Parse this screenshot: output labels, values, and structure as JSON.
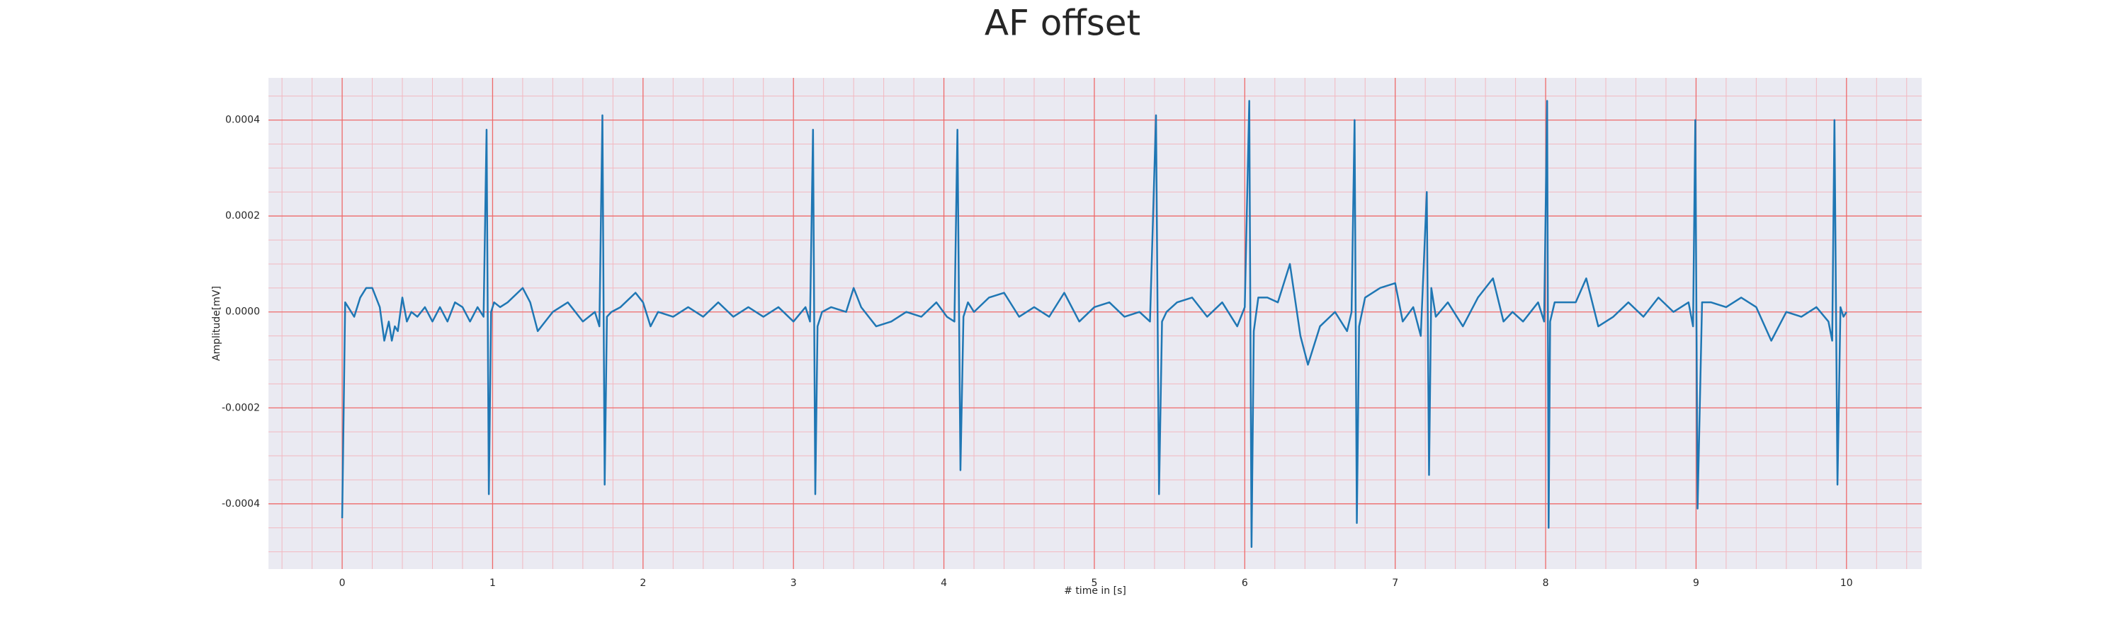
{
  "chart_data": {
    "type": "line",
    "title": "AF offset",
    "xlabel": "# time in [s]",
    "ylabel": "Amplitude[mV]",
    "color": "#1f77b4",
    "grid": true,
    "minor_grid": true,
    "xlim": [
      -0.49,
      10.5
    ],
    "ylim": [
      -0.000536,
      0.000488
    ],
    "xticks": [
      0,
      1,
      2,
      3,
      4,
      5,
      6,
      7,
      8,
      9,
      10
    ],
    "yticks": [
      -0.0004,
      -0.0002,
      {
        "value": 0,
        "label": "0.0000"
      },
      0.0002,
      0.0004
    ],
    "xminorticks": [
      -0.4,
      -0.2,
      0.2,
      0.4,
      0.6,
      0.8,
      1.2,
      1.4,
      1.6,
      1.8,
      2.2,
      2.4,
      2.6,
      2.8,
      3.2,
      3.4,
      3.6,
      3.8,
      4.2,
      4.4,
      4.6,
      4.8,
      5.2,
      5.4,
      5.6,
      5.8,
      6.2,
      6.4,
      6.6,
      6.8,
      7.2,
      7.4,
      7.6,
      7.8,
      8.2,
      8.4,
      8.6,
      8.8,
      9.2,
      9.4,
      9.6,
      9.8,
      10.2,
      10.4
    ],
    "yminorticks": [
      -0.0005,
      -0.00045,
      -0.00035,
      -0.0003,
      -0.00025,
      -0.00015,
      -0.0001,
      -5e-05,
      5e-05,
      0.0001,
      0.00015,
      0.00025,
      0.0003,
      0.00035,
      0.00045
    ],
    "x": [
      0,
      0.02,
      0.04,
      0.08,
      0.12,
      0.16,
      0.2,
      0.25,
      0.28,
      0.31,
      0.33,
      0.35,
      0.37,
      0.4,
      0.43,
      0.46,
      0.5,
      0.55,
      0.6,
      0.65,
      0.7,
      0.75,
      0.8,
      0.85,
      0.9,
      0.94,
      0.96,
      0.975,
      0.99,
      1.01,
      1.05,
      1.1,
      1.2,
      1.25,
      1.3,
      1.35,
      1.4,
      1.5,
      1.6,
      1.68,
      1.71,
      1.73,
      1.745,
      1.76,
      1.79,
      1.85,
      1.95,
      2.0,
      2.05,
      2.1,
      2.2,
      2.3,
      2.4,
      2.5,
      2.6,
      2.7,
      2.8,
      2.9,
      3.0,
      3.08,
      3.11,
      3.13,
      3.145,
      3.16,
      3.19,
      3.25,
      3.35,
      3.4,
      3.45,
      3.55,
      3.65,
      3.75,
      3.85,
      3.95,
      4.02,
      4.07,
      4.09,
      4.11,
      4.13,
      4.16,
      4.2,
      4.3,
      4.4,
      4.5,
      4.6,
      4.7,
      4.8,
      4.9,
      5.0,
      5.1,
      5.2,
      5.3,
      5.37,
      5.41,
      5.43,
      5.45,
      5.48,
      5.55,
      5.65,
      5.75,
      5.85,
      5.95,
      6.0,
      6.03,
      6.045,
      6.06,
      6.09,
      6.15,
      6.22,
      6.3,
      6.37,
      6.42,
      6.5,
      6.6,
      6.68,
      6.71,
      6.73,
      6.745,
      6.76,
      6.8,
      6.9,
      7.0,
      7.05,
      7.12,
      7.17,
      7.21,
      7.225,
      7.24,
      7.27,
      7.35,
      7.45,
      7.55,
      7.65,
      7.72,
      7.78,
      7.85,
      7.95,
      7.99,
      8.01,
      8.02,
      8.03,
      8.06,
      8.12,
      8.2,
      8.27,
      8.35,
      8.45,
      8.55,
      8.65,
      8.75,
      8.85,
      8.95,
      8.98,
      8.995,
      9.01,
      9.04,
      9.1,
      9.2,
      9.3,
      9.4,
      9.5,
      9.6,
      9.7,
      9.8,
      9.88,
      9.905,
      9.92,
      9.94,
      9.96,
      9.98,
      10.0
    ],
    "values": [
      -0.00043,
      2e-05,
      1e-05,
      -1e-05,
      3e-05,
      5e-05,
      5e-05,
      1e-05,
      -6e-05,
      -2e-05,
      -6e-05,
      -3e-05,
      -4e-05,
      3e-05,
      -2e-05,
      0,
      -1e-05,
      1e-05,
      -2e-05,
      1e-05,
      -2e-05,
      2e-05,
      1e-05,
      -2e-05,
      1e-05,
      -1e-05,
      0.00038,
      -0.00038,
      0,
      2e-05,
      1e-05,
      2e-05,
      5e-05,
      2e-05,
      -4e-05,
      -2e-05,
      0,
      2e-05,
      -2e-05,
      0,
      -3e-05,
      0.00041,
      -0.00036,
      -1e-05,
      0,
      1e-05,
      4e-05,
      2e-05,
      -3e-05,
      0,
      -1e-05,
      1e-05,
      -1e-05,
      2e-05,
      -1e-05,
      1e-05,
      -1e-05,
      1e-05,
      -2e-05,
      1e-05,
      -2e-05,
      0.00038,
      -0.00038,
      -3e-05,
      0,
      1e-05,
      0,
      5e-05,
      1e-05,
      -3e-05,
      -2e-05,
      0,
      -1e-05,
      2e-05,
      -1e-05,
      -2e-05,
      0.00038,
      -0.00033,
      -1e-05,
      2e-05,
      0,
      3e-05,
      4e-05,
      -1e-05,
      1e-05,
      -1e-05,
      4e-05,
      -2e-05,
      1e-05,
      2e-05,
      -1e-05,
      0,
      -2e-05,
      0.00041,
      -0.00038,
      -2e-05,
      0,
      2e-05,
      3e-05,
      -1e-05,
      2e-05,
      -3e-05,
      1e-05,
      0.00044,
      -0.00049,
      -4e-05,
      3e-05,
      3e-05,
      2e-05,
      0.0001,
      -5e-05,
      -0.00011,
      -3e-05,
      0,
      -4e-05,
      0,
      0.0004,
      -0.00044,
      -3e-05,
      3e-05,
      5e-05,
      6e-05,
      -2e-05,
      1e-05,
      -5e-05,
      0.00025,
      -0.00034,
      5e-05,
      -1e-05,
      2e-05,
      -3e-05,
      3e-05,
      7e-05,
      -2e-05,
      0,
      -2e-05,
      2e-05,
      -2e-05,
      0.00044,
      -0.00045,
      -2e-05,
      2e-05,
      2e-05,
      2e-05,
      7e-05,
      -3e-05,
      -1e-05,
      2e-05,
      -1e-05,
      3e-05,
      0,
      2e-05,
      -3e-05,
      0.0004,
      -0.00041,
      2e-05,
      2e-05,
      1e-05,
      3e-05,
      1e-05,
      -6e-05,
      0,
      -1e-05,
      1e-05,
      -2e-05,
      -6e-05,
      0.0004,
      -0.00036,
      1e-05,
      -1e-05,
      0
    ]
  }
}
